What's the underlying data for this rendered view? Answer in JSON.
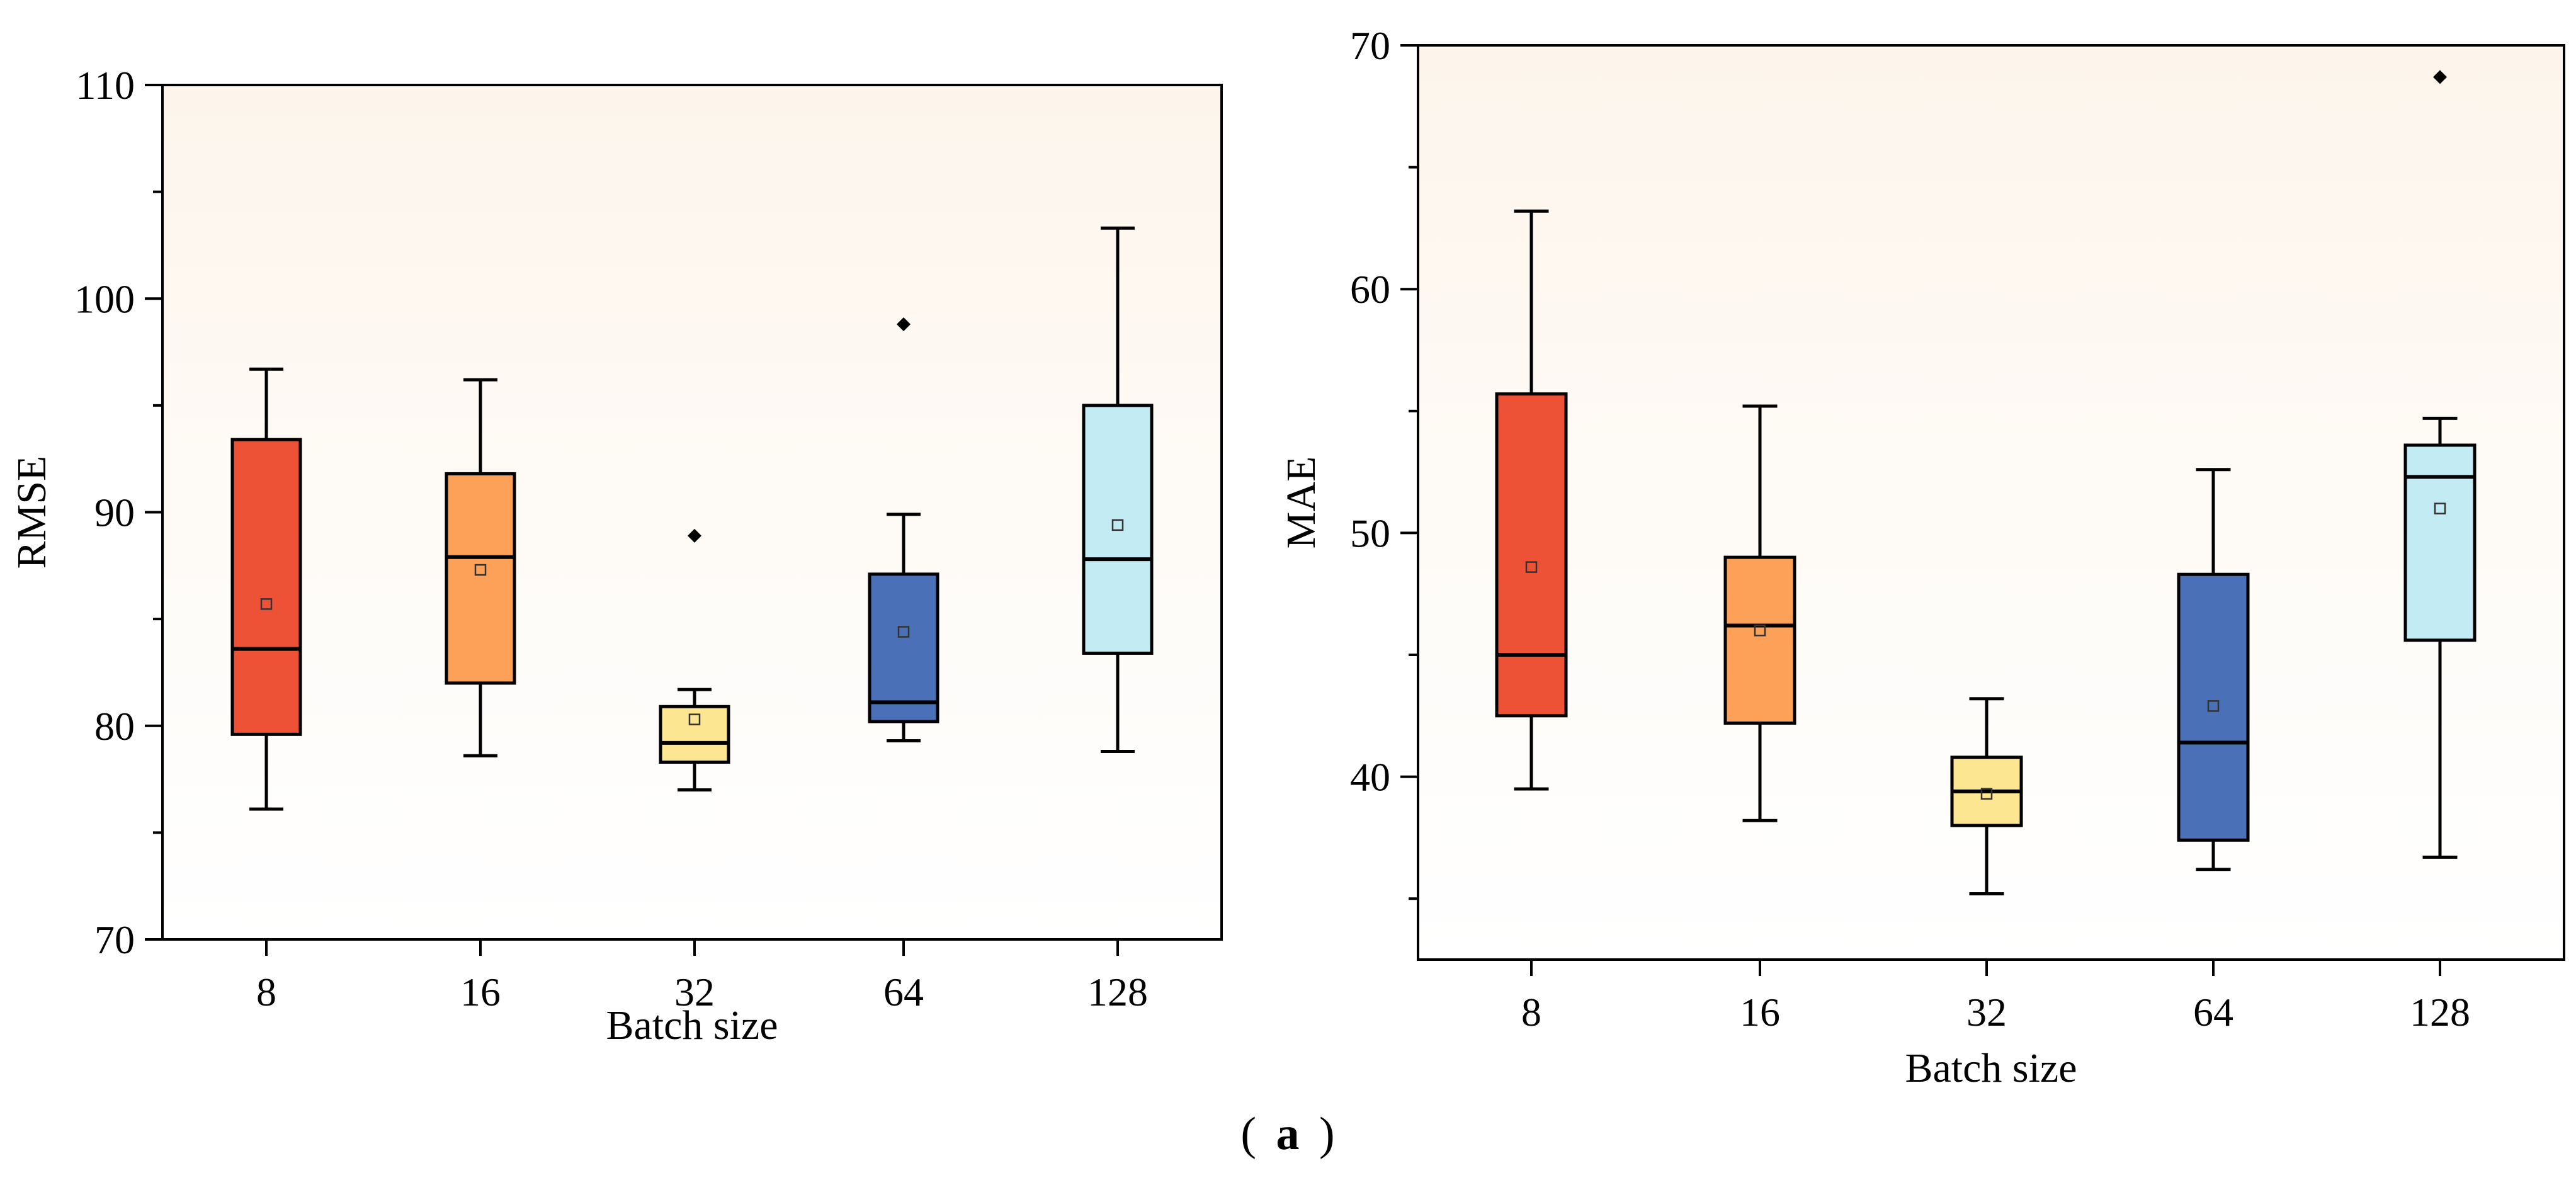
{
  "caption": {
    "label": "a"
  },
  "chart_data": [
    {
      "type": "box",
      "title": "",
      "xlabel": "Batch size",
      "ylabel": "RMSE",
      "categories": [
        "8",
        "16",
        "32",
        "64",
        "128"
      ],
      "ylim": [
        70,
        110
      ],
      "yticks": [
        70,
        80,
        90,
        100,
        110
      ],
      "yminor": [
        75,
        85,
        95,
        105
      ],
      "ytick_labels": [
        "70",
        "80",
        "90",
        "100",
        "110"
      ],
      "colors": [
        "#ee5236",
        "#fca157",
        "#fde691",
        "#4a71b7",
        "#c3ebf4"
      ],
      "boxes": [
        {
          "whisker_low": 76.1,
          "q1": 79.6,
          "median": 83.6,
          "q3": 93.4,
          "whisker_high": 96.7,
          "mean": 85.7,
          "outliers": []
        },
        {
          "whisker_low": 78.6,
          "q1": 82.0,
          "median": 87.9,
          "q3": 91.8,
          "whisker_high": 96.2,
          "mean": 87.3,
          "outliers": []
        },
        {
          "whisker_low": 77.0,
          "q1": 78.3,
          "median": 79.2,
          "q3": 80.9,
          "whisker_high": 81.7,
          "mean": 80.3,
          "outliers": [
            88.9
          ]
        },
        {
          "whisker_low": 79.3,
          "q1": 80.2,
          "median": 81.1,
          "q3": 87.1,
          "whisker_high": 89.9,
          "mean": 84.4,
          "outliers": [
            98.8
          ]
        },
        {
          "whisker_low": 78.8,
          "q1": 83.4,
          "median": 87.8,
          "q3": 95.0,
          "whisker_high": 103.3,
          "mean": 89.4,
          "outliers": []
        }
      ]
    },
    {
      "type": "box",
      "title": "",
      "xlabel": "Batch size",
      "ylabel": "MAE",
      "categories": [
        "8",
        "16",
        "32",
        "64",
        "128"
      ],
      "ylim": [
        32.5,
        70
      ],
      "yticks": [
        40,
        50,
        60,
        70
      ],
      "yminor": [
        35,
        45,
        55,
        65
      ],
      "ytick_labels": [
        "40",
        "50",
        "60",
        "70"
      ],
      "colors": [
        "#ee5236",
        "#fca157",
        "#fde691",
        "#4a71b7",
        "#c3ebf4"
      ],
      "boxes": [
        {
          "whisker_low": 39.5,
          "q1": 42.5,
          "median": 45.0,
          "q3": 55.7,
          "whisker_high": 63.2,
          "mean": 48.6,
          "outliers": []
        },
        {
          "whisker_low": 38.2,
          "q1": 42.2,
          "median": 46.2,
          "q3": 49.0,
          "whisker_high": 55.2,
          "mean": 46.0,
          "outliers": []
        },
        {
          "whisker_low": 35.2,
          "q1": 38.0,
          "median": 39.4,
          "q3": 40.8,
          "whisker_high": 43.2,
          "mean": 39.3,
          "outliers": []
        },
        {
          "whisker_low": 36.2,
          "q1": 37.4,
          "median": 41.4,
          "q3": 48.3,
          "whisker_high": 52.6,
          "mean": 42.9,
          "outliers": []
        },
        {
          "whisker_low": 36.7,
          "q1": 45.6,
          "median": 52.3,
          "q3": 53.6,
          "whisker_high": 54.7,
          "mean": 51.0,
          "outliers": [
            68.7
          ]
        }
      ]
    }
  ]
}
